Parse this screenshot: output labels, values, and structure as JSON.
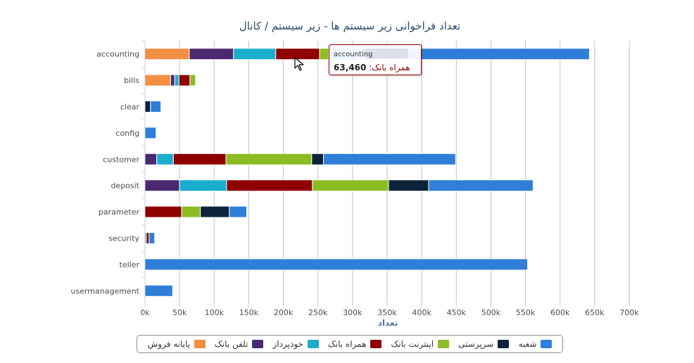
{
  "chart_data": {
    "type": "bar",
    "orientation": "horizontal",
    "stacked": true,
    "title": "تعداد فراخوانی زیر سیستم ها - زیر سیستم / کانال",
    "xlabel": "تعداد",
    "ylabel": "",
    "xlim": [
      0,
      700000
    ],
    "xticks": [
      0,
      50000,
      100000,
      150000,
      200000,
      250000,
      300000,
      350000,
      400000,
      450000,
      500000,
      550000,
      600000,
      650000,
      700000
    ],
    "xtick_labels": [
      "0k",
      "50k",
      "100k",
      "150k",
      "200k",
      "250k",
      "300k",
      "350k",
      "400k",
      "450k",
      "500k",
      "550k",
      "600k",
      "650k",
      "700k"
    ],
    "grid": true,
    "legend_position": "bottom-center",
    "categories": [
      "accounting",
      "bills",
      "clear",
      "config",
      "customer",
      "deposit",
      "parameter",
      "security",
      "teller",
      "usermanagement"
    ],
    "series": [
      {
        "name": "پایانه فروش",
        "color": "#f28f43",
        "values": [
          64000,
          37000,
          0,
          0,
          0,
          0,
          0,
          0,
          0,
          0
        ]
      },
      {
        "name": "تلفن بانک",
        "color": "#492970",
        "values": [
          64000,
          6000,
          0,
          0,
          17000,
          50000,
          0,
          0,
          0,
          0
        ]
      },
      {
        "name": "خودپرداز",
        "color": "#1aadce",
        "values": [
          61000,
          6000,
          0,
          0,
          24000,
          68000,
          0,
          2000,
          0,
          0
        ]
      },
      {
        "name": "همراه بانک",
        "color": "#8f0000",
        "values": [
          63460,
          16000,
          0,
          0,
          76000,
          124000,
          53000,
          4000,
          0,
          0
        ]
      },
      {
        "name": "اینترنت بانک",
        "color": "#8bbc21",
        "values": [
          13000,
          8000,
          0,
          0,
          124000,
          110000,
          27000,
          0,
          0,
          0
        ]
      },
      {
        "name": "سرپرستی",
        "color": "#0d233a",
        "values": [
          0,
          0,
          8000,
          0,
          17000,
          58000,
          42000,
          0,
          0,
          0
        ]
      },
      {
        "name": "شعبه",
        "color": "#2f7ed8",
        "values": [
          377000,
          0,
          15000,
          16000,
          191000,
          151000,
          25000,
          8000,
          553000,
          40000
        ]
      }
    ],
    "tooltip": {
      "category": "accounting",
      "series": "همراه بانک",
      "value": "63,460",
      "label_text": "همراه بانک:"
    }
  },
  "ui": {
    "cursor": "pointer-arrow-icon"
  }
}
